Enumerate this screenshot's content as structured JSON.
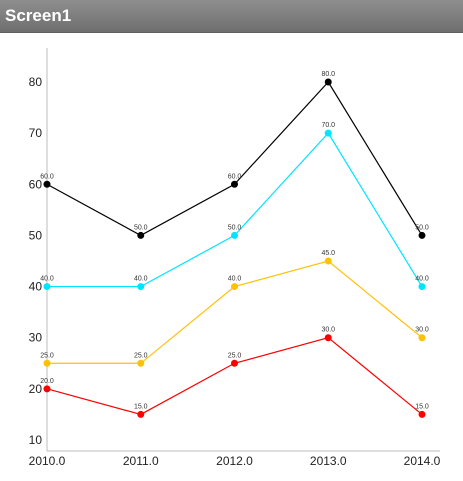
{
  "window": {
    "title": "Screen1"
  },
  "chart_data": {
    "type": "line",
    "title": "",
    "xlabel": "",
    "ylabel": "",
    "x": [
      "2010.0",
      "2011.0",
      "2012.0",
      "2013.0",
      "2014.0"
    ],
    "x_values": [
      2010,
      2011,
      2012,
      2013,
      2014
    ],
    "yticks": [
      "10",
      "20",
      "30",
      "40",
      "50",
      "60",
      "70",
      "80"
    ],
    "ylim": [
      8,
      86
    ],
    "grid": false,
    "legend": "none",
    "series": [
      {
        "color": "#000000",
        "values": [
          60,
          50,
          60,
          80,
          50
        ],
        "labels": [
          "60.0",
          "50.0",
          "60.0",
          "80.0",
          "50.0"
        ]
      },
      {
        "color": "#00e5ff",
        "values": [
          40,
          40,
          50,
          70,
          40
        ],
        "labels": [
          "40.0",
          "40.0",
          "50.0",
          "70.0",
          "40.0"
        ]
      },
      {
        "color": "#ffc107",
        "values": [
          25,
          25,
          40,
          45,
          30
        ],
        "labels": [
          "25.0",
          "25.0",
          "40.0",
          "45.0",
          "30.0"
        ]
      },
      {
        "color": "#ff0000",
        "values": [
          20,
          15,
          25,
          30,
          15
        ],
        "labels": [
          "20.0",
          "15.0",
          "25.0",
          "30.0",
          "15.0"
        ]
      }
    ]
  }
}
